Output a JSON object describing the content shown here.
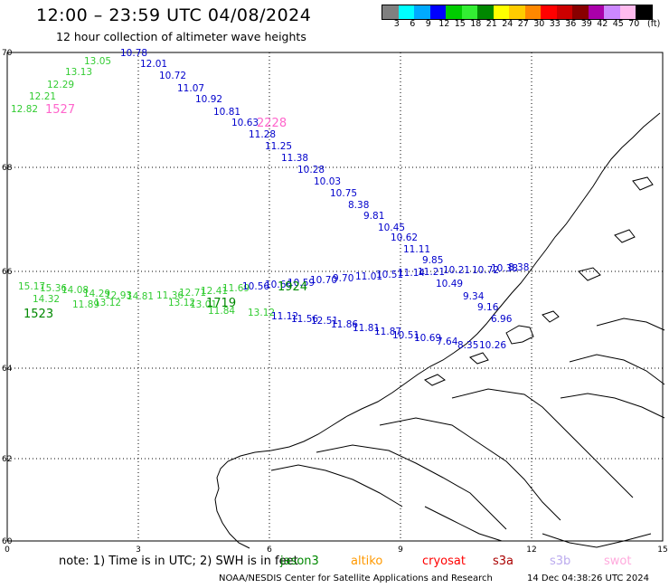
{
  "header": {
    "title": "12:00 – 23:59 UTC 04/08/2024",
    "subtitle": "12 hour collection of altimeter wave heights"
  },
  "colorbar": {
    "colors": [
      "#808080",
      "#00ffff",
      "#00aaff",
      "#0000ff",
      "#00cc00",
      "#33ee33",
      "#008800",
      "#ffff00",
      "#ffcc00",
      "#ff8800",
      "#ff0000",
      "#cc0000",
      "#880000",
      "#aa00aa",
      "#cc88ff",
      "#ffbbee",
      "#000000"
    ],
    "ticks": [
      "3",
      "6",
      "9",
      "12",
      "15",
      "18",
      "21",
      "24",
      "27",
      "30",
      "33",
      "36",
      "39",
      "42",
      "45",
      "70"
    ],
    "unit": "(ft)"
  },
  "axes": {
    "lat_labels": [
      "70",
      "68",
      "66",
      "64",
      "62",
      "60"
    ],
    "lon_labels": [
      "0",
      "3",
      "6",
      "9",
      "12",
      "15"
    ]
  },
  "tracks": [
    {
      "time": "1527",
      "color": "#33cc33",
      "time_color": "#ff66cc",
      "labels": [
        "12.82",
        "12.21",
        "12.29",
        "13.13",
        "13.05"
      ]
    },
    {
      "time": "2228",
      "color": "#0000cc",
      "time_color": "#ff66cc",
      "labels": [
        "10.78",
        "12.01",
        "10.72",
        "11.07",
        "10.92",
        "10.81",
        "10.63",
        "11.28",
        "11.25",
        "11.38",
        "10.28",
        "10.03",
        "10.75",
        "8.38",
        "9.81",
        "10.45",
        "10.62",
        "11.11",
        "9.85",
        "10.21",
        "10.49",
        "9.34",
        "9.16",
        "6.96"
      ]
    },
    {
      "time": "1523",
      "color": "#33cc33",
      "time_color": "#008800",
      "labels": [
        "15.17",
        "15.36",
        "14.08",
        "14.29",
        "12.93",
        "14.81",
        "14.32",
        "13.12",
        "11.89"
      ]
    },
    {
      "time": "1719",
      "color": "#33cc33",
      "time_color": "#008800",
      "labels": [
        "11.36",
        "12.71",
        "12.41",
        "11.69",
        "13.12",
        "13.01",
        "11.84",
        "13.12"
      ]
    },
    {
      "time": "1924",
      "color": "#0000cc",
      "time_color": "#008800",
      "labels": [
        "10.56",
        "10.66",
        "10.59",
        "10.70",
        "9.70",
        "11.01",
        "10.51",
        "11.14",
        "11.21",
        "10.72",
        "10.38",
        "8.38",
        "11.12",
        "11.56",
        "12.51",
        "11.86",
        "11.81",
        "11.87",
        "10.51",
        "10.69",
        "7.64",
        "8.35",
        "10.26"
      ]
    }
  ],
  "legend": {
    "note": "note:  1) Time is in UTC;  2) SWH is in feet",
    "satellites": [
      {
        "name": "jason3",
        "color": "#008800"
      },
      {
        "name": "altiko",
        "color": "#ff9900"
      },
      {
        "name": "cryosat",
        "color": "#ff0000"
      },
      {
        "name": "s3a",
        "color": "#aa0000"
      },
      {
        "name": "s3b",
        "color": "#bbaaee"
      },
      {
        "name": "swot",
        "color": "#ffaadd"
      }
    ]
  },
  "footer": {
    "credit": "NOAA/NESDIS Center for Satellite Applications and Research",
    "timestamp": "14 Dec 04:38:26 UTC 2024"
  }
}
